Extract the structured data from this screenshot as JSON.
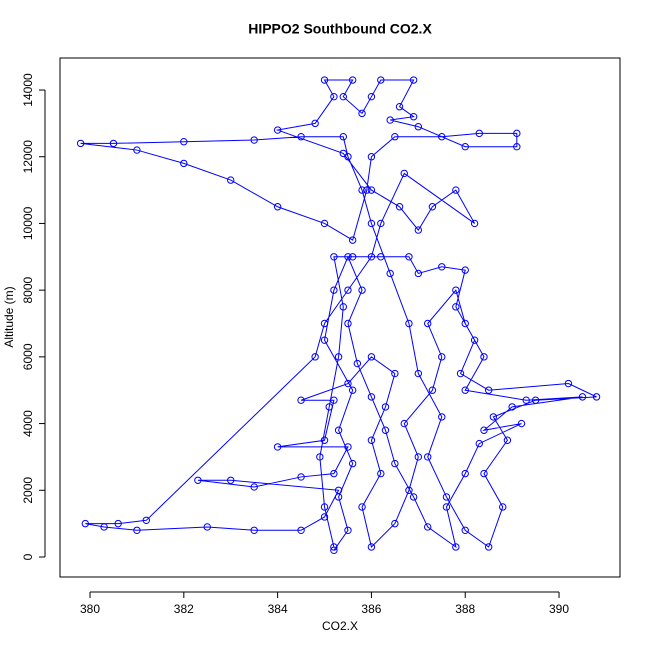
{
  "chart_data": {
    "type": "line",
    "title": "HIPPO2 Southbound CO2.X",
    "x_label": "CO2.X",
    "y_label": "Altitude (m)",
    "color": "#0000ff",
    "markers": true,
    "xlim": [
      379.36,
      391.3
    ],
    "xticks": [
      380,
      382,
      384,
      386,
      388,
      390
    ],
    "ylim": [
      -600,
      14960
    ],
    "yticks": [
      0,
      2000,
      4000,
      6000,
      8000,
      10000,
      12000,
      14000
    ],
    "x": [
      385.2,
      385.0,
      384.9,
      385.1,
      385.3,
      385.4,
      385.2,
      385.6,
      386.2,
      386.8,
      387.0,
      387.5,
      388.0,
      387.8,
      388.2,
      387.9,
      388.5,
      390.2,
      390.8,
      389.5,
      388.6,
      388.9,
      388.4,
      388.8,
      388.5,
      388.0,
      387.6,
      387.2,
      387.5,
      387.0,
      386.8,
      386.4,
      386.0,
      385.8,
      385.5,
      385.4,
      384.5,
      383.5,
      382.0,
      380.5,
      379.8,
      381.0,
      382.0,
      383.0,
      384.0,
      385.0,
      385.6,
      385.9,
      386.0,
      386.5,
      387.5,
      388.3,
      389.1,
      389.1,
      388.0,
      387.0,
      386.4,
      386.9,
      386.6,
      386.9,
      386.2,
      386.0,
      385.8,
      385.4,
      385.6,
      385.0,
      385.2,
      384.8,
      384.0,
      385.4,
      386.0,
      386.6,
      387.0,
      387.3,
      387.8,
      388.2,
      386.7,
      386.2,
      386.0,
      385.5,
      385.0,
      384.8,
      381.2,
      380.6,
      379.9,
      380.3,
      381.0,
      382.5,
      383.5,
      384.5,
      385.0,
      385.3,
      383.0,
      382.3,
      383.5,
      384.5,
      385.2,
      385.5,
      384.0,
      385.0,
      385.2,
      384.5,
      385.5,
      386.0,
      386.5,
      386.3,
      386.0,
      386.2,
      385.8,
      386.0,
      386.5,
      386.8,
      387.0,
      386.7,
      387.3,
      387.5,
      387.2,
      387.8,
      388.0,
      388.4,
      388.0,
      389.3,
      390.5,
      389.0,
      388.4,
      389.2,
      388.3,
      388.0,
      387.6,
      387.8,
      387.2,
      386.9,
      386.5,
      386.3,
      386.0,
      385.7,
      385.5,
      385.8,
      385.5,
      385.2,
      385.0,
      385.6,
      385.3,
      385.6,
      385.3,
      385.5,
      385.2
    ],
    "values": [
      300,
      1500,
      3000,
      4500,
      6000,
      7500,
      9000,
      9000,
      9000,
      9000,
      8500,
      8700,
      8600,
      7500,
      6500,
      5500,
      5000,
      5200,
      4800,
      4700,
      4200,
      3500,
      2500,
      1500,
      300,
      800,
      1800,
      3000,
      4200,
      5500,
      7000,
      8500,
      10000,
      11000,
      12000,
      12600,
      12600,
      12500,
      12450,
      12400,
      12400,
      12200,
      11800,
      11300,
      10500,
      10000,
      9500,
      11000,
      12000,
      12600,
      12600,
      12700,
      12700,
      12300,
      12300,
      12900,
      13100,
      13200,
      13500,
      14300,
      14300,
      13800,
      13300,
      13800,
      14300,
      14300,
      13800,
      13000,
      12800,
      12100,
      11000,
      10500,
      9800,
      10500,
      11000,
      10000,
      11500,
      10000,
      9000,
      8000,
      7000,
      6000,
      1100,
      1000,
      1000,
      900,
      800,
      900,
      800,
      800,
      1200,
      2000,
      2300,
      2300,
      2100,
      2400,
      2500,
      3300,
      3300,
      3500,
      4700,
      4700,
      5200,
      6000,
      5500,
      4500,
      3500,
      2500,
      1500,
      300,
      1000,
      2000,
      3000,
      4000,
      5000,
      6000,
      7000,
      8000,
      7000,
      6000,
      5000,
      4700,
      4800,
      4500,
      3800,
      4000,
      3400,
      2500,
      1500,
      300,
      900,
      1800,
      2800,
      3800,
      4800,
      5800,
      7000,
      8000,
      9000,
      8000,
      6500,
      5000,
      3800,
      2800,
      1800,
      800,
      200
    ]
  }
}
